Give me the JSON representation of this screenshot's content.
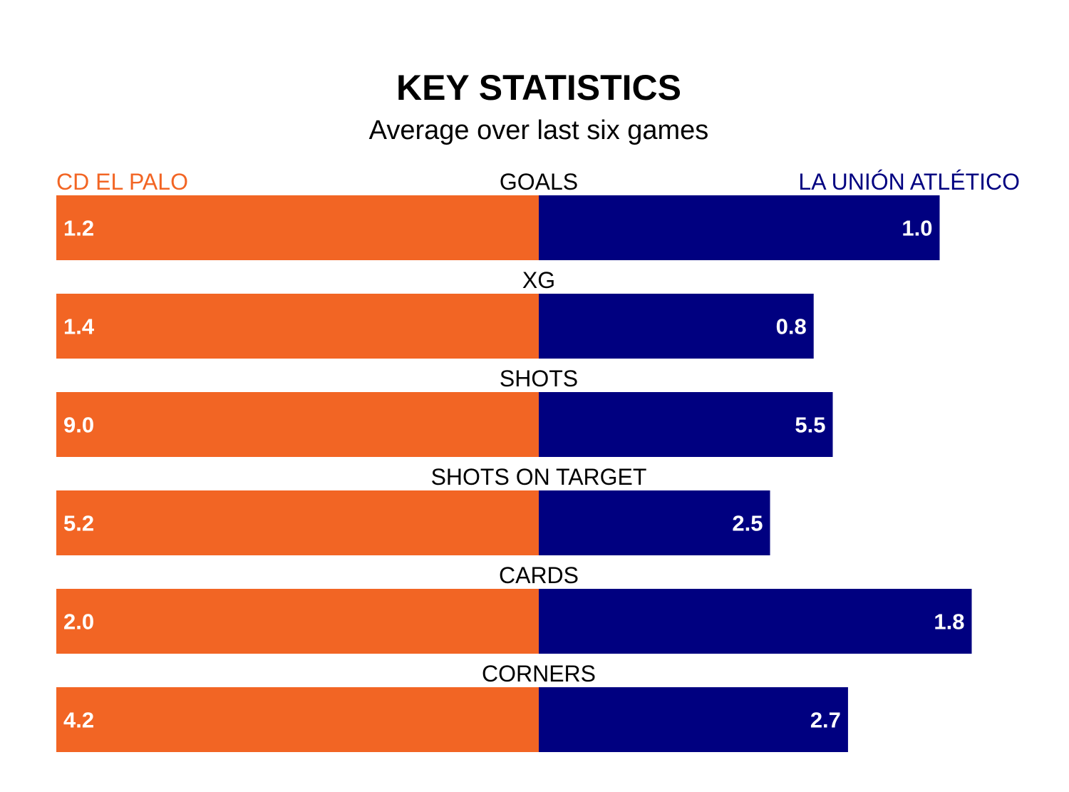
{
  "chart_data": {
    "type": "bar",
    "orientation": "horizontal",
    "title": "KEY STATISTICS",
    "subtitle": "Average over last six games",
    "categories": [
      "GOALS",
      "XG",
      "SHOTS",
      "SHOTS ON TARGET",
      "CARDS",
      "CORNERS"
    ],
    "series": [
      {
        "name": "CD EL PALO",
        "values": [
          1.2,
          1.4,
          9.0,
          5.2,
          2.0,
          4.2
        ],
        "labels": [
          "1.2",
          "1.4",
          "9.0",
          "5.2",
          "2.0",
          "4.2"
        ],
        "color": "#f26524"
      },
      {
        "name": "LA UNIÓN ATLÉTICO",
        "values": [
          1.0,
          0.8,
          5.5,
          2.5,
          1.8,
          2.7
        ],
        "labels": [
          "1.0",
          "0.8",
          "5.5",
          "2.5",
          "1.8",
          "2.7"
        ],
        "color": "#000080"
      }
    ],
    "value_label_colors": {
      "inside": "#ffffff",
      "outside": "#000000"
    },
    "grid": false,
    "legend": "top"
  }
}
